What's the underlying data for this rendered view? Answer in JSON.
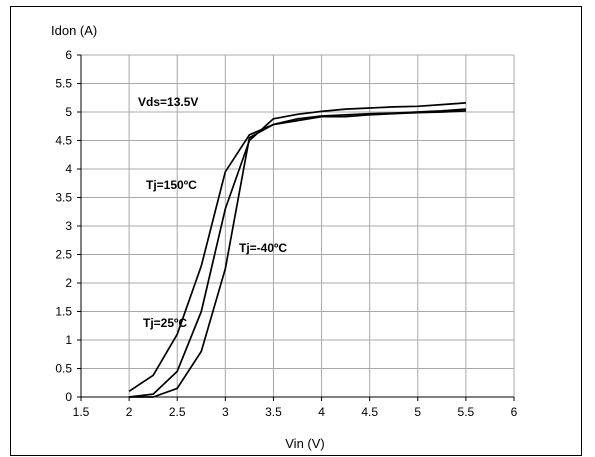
{
  "chart_data": {
    "type": "line",
    "ylabel": "Idon (A)",
    "xlabel": "Vin (V)",
    "xlim": [
      1.5,
      6
    ],
    "ylim": [
      0,
      6
    ],
    "x_ticks": [
      "1.5",
      "2",
      "2.5",
      "3",
      "3.5",
      "4",
      "4.5",
      "5",
      "5.5",
      "6"
    ],
    "y_ticks": [
      "0",
      "0.5",
      "1",
      "1.5",
      "2",
      "2.5",
      "3",
      "3.5",
      "4",
      "4.5",
      "5",
      "5.5",
      "6"
    ],
    "grid": true,
    "annotations": {
      "condition": "Vds=13.5V",
      "tj150": "Tj=150ºC",
      "tj_minus40": "Tj=-40ºC",
      "tj25": "Tj=25ºC"
    },
    "series": [
      {
        "name": "Tj=150ºC",
        "x": [
          2.0,
          2.25,
          2.5,
          2.75,
          3.0,
          3.25,
          3.5,
          3.75,
          4.0,
          4.25,
          4.5,
          4.75,
          5.0,
          5.25,
          5.5
        ],
        "y": [
          0.1,
          0.38,
          1.1,
          2.3,
          3.95,
          4.6,
          4.78,
          4.85,
          4.92,
          4.92,
          4.95,
          4.97,
          4.99,
          5.0,
          5.02
        ]
      },
      {
        "name": "Tj=-40ºC",
        "x": [
          2.0,
          2.25,
          2.5,
          2.75,
          3.0,
          3.25,
          3.5,
          3.75,
          4.0,
          4.25,
          4.5,
          4.75,
          5.0,
          5.25,
          5.5
        ],
        "y": [
          0.0,
          0.05,
          0.45,
          1.5,
          3.3,
          4.5,
          4.88,
          4.96,
          5.01,
          5.05,
          5.07,
          5.09,
          5.1,
          5.13,
          5.16
        ]
      },
      {
        "name": "Tj=25ºC",
        "x": [
          2.0,
          2.25,
          2.5,
          2.75,
          3.0,
          3.25,
          3.5,
          3.75,
          4.0,
          4.25,
          4.5,
          4.75,
          5.0,
          5.25,
          5.5
        ],
        "y": [
          0.0,
          0.0,
          0.15,
          0.8,
          2.25,
          4.55,
          4.78,
          4.88,
          4.93,
          4.95,
          4.97,
          4.98,
          5.0,
          5.02,
          5.05
        ]
      }
    ]
  }
}
